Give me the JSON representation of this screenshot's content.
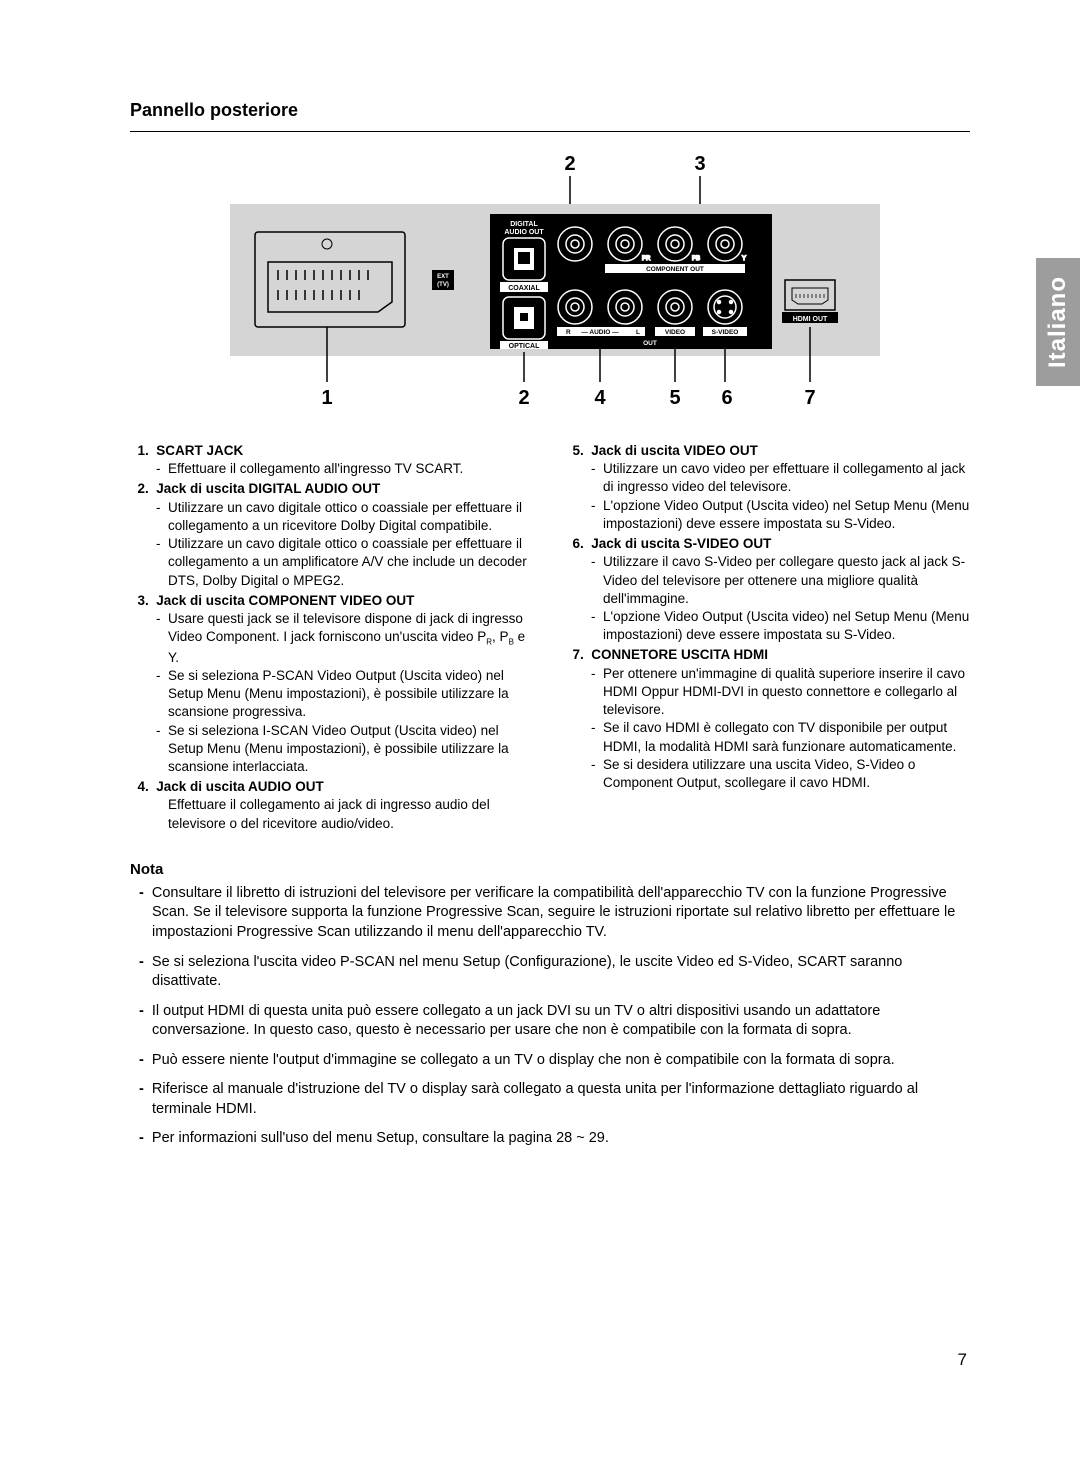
{
  "page": {
    "title": "Pannello posteriore",
    "language_tab": "Italiano",
    "page_number": "7"
  },
  "diagram": {
    "bg_color": "#d5d5d5",
    "panel_color": "#000000",
    "text_color": "#ffffff",
    "top_digits": [
      "2",
      "3"
    ],
    "bottom_digits": [
      "1",
      "2",
      "4",
      "5",
      "6",
      "7"
    ],
    "labels": {
      "digital_audio": "DIGITAL\nAUDIO OUT",
      "ext_tv": "EXT\n(TV)",
      "coaxial": "COAXIAL",
      "optical": "OPTICAL",
      "component": "COMPONENT OUT",
      "audio_r": "R",
      "audio_l": "L",
      "audio": "AUDIO",
      "video": "VIDEO",
      "svideo": "S-VIDEO",
      "hdmi": "HDMI OUT",
      "out": "OUT",
      "pr": "PR",
      "pb": "PB",
      "y": "Y"
    }
  },
  "left_items": [
    {
      "num": "1.",
      "title": "SCART JACK",
      "subs": [
        "Effettuare il collegamento all'ingresso TV SCART."
      ]
    },
    {
      "num": "2.",
      "title": "Jack di uscita DIGITAL AUDIO OUT",
      "subs": [
        "Utilizzare un cavo digitale ottico o coassiale per effettuare il collegamento a un ricevitore Dolby Digital compatibile.",
        "Utilizzare un cavo digitale ottico o coassiale per effettuare il collegamento a un amplificatore A/V che include un decoder DTS, Dolby Digital o MPEG2."
      ]
    },
    {
      "num": "3.",
      "title": "Jack di uscita COMPONENT VIDEO OUT",
      "subs": [
        "Usare questi jack se il televisore dispone di jack di ingresso Video Component. I jack forniscono un'uscita video PR, PB e Y.",
        "Se si seleziona P-SCAN Video Output (Uscita video) nel Setup Menu (Menu impostazioni), è possibile utilizzare la scansione progressiva.",
        "Se si seleziona I-SCAN Video Output (Uscita video) nel Setup Menu (Menu impostazioni), è possibile utilizzare la scansione interlacciata."
      ]
    },
    {
      "num": "4.",
      "title": "Jack di uscita AUDIO OUT",
      "plain": "Effettuare il collegamento ai jack di ingresso audio del televisore o del ricevitore audio/video."
    }
  ],
  "right_items": [
    {
      "num": "5.",
      "title": "Jack di uscita VIDEO OUT",
      "subs": [
        "Utilizzare un cavo video per effettuare il collegamento al jack di ingresso video del televisore.",
        "L'opzione Video Output (Uscita video) nel Setup Menu (Menu impostazioni) deve essere impostata su S-Video."
      ]
    },
    {
      "num": "6.",
      "title": "Jack di uscita S-VIDEO OUT",
      "subs": [
        "Utilizzare il cavo S-Video per collegare questo jack al jack S-Video del televisore per ottenere una migliore qualità dell'immagine.",
        "L'opzione Video Output (Uscita video) nel Setup Menu (Menu impostazioni) deve essere impostata su S-Video."
      ]
    },
    {
      "num": "7.",
      "title": "CONNETORE USCITA HDMI",
      "subs": [
        "Per ottenere un'immagine di qualità superiore inserire il cavo HDMI Oppur HDMI-DVI in questo connettore e collegarlo al televisore.",
        "Se il cavo HDMI è collegato con TV disponibile per output HDMI, la modalità HDMI sarà funzionare automaticamente.",
        "Se si desidera utilizzare una uscita Video, S-Video o Component Output, scollegare il cavo HDMI."
      ]
    }
  ],
  "note": {
    "title": "Nota",
    "items": [
      "Consultare il libretto di istruzioni del televisore per verificare la compatibilità dell'apparecchio TV con la funzione Progressive Scan. Se il televisore supporta la funzione Progressive Scan, seguire le istruzioni riportate sul relativo libretto per effettuare le impostazioni Progressive Scan utilizzando il menu dell'apparecchio TV.",
      "Se si seleziona l'uscita video P-SCAN nel menu Setup (Configurazione), le uscite Video ed S-Video, SCART saranno disattivate.",
      "Il output HDMI di questa unita può essere collegato a un jack DVI su un TV o altri dispositivi usando un adattatore conversazione. In questo caso, questo è necessario per usare che non è compatibile con la formata di sopra.",
      "Può essere niente l'output d'immagine se collegato a un TV o display che non è compatibile con la formata di sopra.",
      "Riferisce al manuale d'istruzione del TV o display sarà collegato a questa unita per l'informazione dettagliato riguardo al terminale HDMI.",
      "Per informazioni sull'uso del menu Setup, consultare la pagina 28 ~ 29."
    ]
  }
}
